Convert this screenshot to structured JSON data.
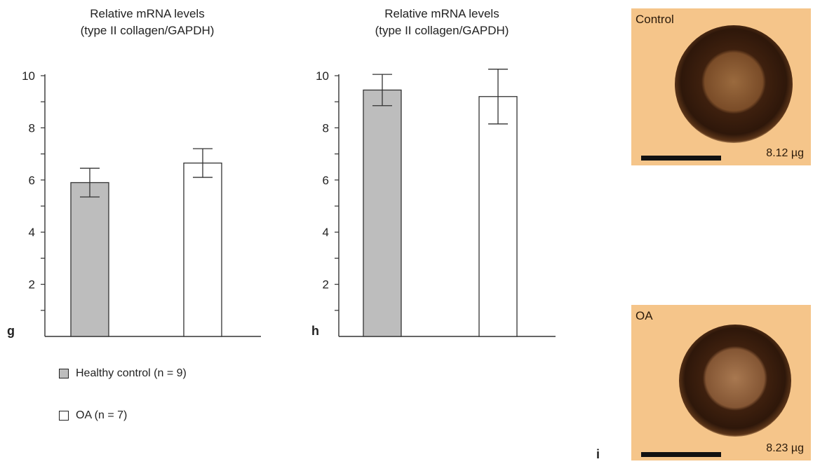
{
  "chart_data": [
    {
      "type": "bar",
      "panel": "g",
      "title": "Relative mRNA levels\n(type II collagen/GAPDH)",
      "title_lines": [
        "Relative mRNA levels",
        "(type II collagen/GAPDH)"
      ],
      "categories": [
        "Healthy control (n = 9)",
        "OA (n = 7)"
      ],
      "values": [
        5.9,
        6.65
      ],
      "errors": [
        0.55,
        0.55
      ],
      "ylim": [
        0,
        10
      ],
      "yticks": [
        2,
        4,
        6,
        8,
        10
      ],
      "ytick_labels": [
        "2",
        "4",
        "6",
        "8",
        "10"
      ],
      "grid": false
    },
    {
      "type": "bar",
      "panel": "h",
      "title": "Relative mRNA levels\n(type II collagen/GAPDH)",
      "title_lines": [
        "Relative mRNA levels",
        "(type II collagen/GAPDH)"
      ],
      "categories": [
        "Healthy control (n = 9)",
        "OA (n = 7)"
      ],
      "values": [
        9.45,
        9.2
      ],
      "errors": [
        0.6,
        1.05
      ],
      "ylim": [
        0,
        10
      ],
      "yticks": [
        2,
        4,
        6,
        8,
        10
      ],
      "ytick_labels": [
        "2",
        "4",
        "6",
        "8",
        "10"
      ],
      "grid": false
    }
  ],
  "legend": {
    "placement": "bottom-left",
    "items": [
      {
        "label": "Healthy control (n = 9)",
        "color": "#bdbdbd"
      },
      {
        "label": "OA (n = 7)",
        "color": "#ffffff"
      }
    ]
  },
  "panel_letters": {
    "g": "g",
    "h": "h",
    "i": "i"
  },
  "photos": [
    {
      "label": "Control",
      "mass": "8.12 µg"
    },
    {
      "label": "OA",
      "mass": "8.23 µg"
    }
  ],
  "colors": {
    "healthy": "#bdbdbd",
    "oa": "#ffffff",
    "axis": "#333333",
    "photo_bg": "#f5c58a",
    "pellet": "#4a2a16"
  }
}
